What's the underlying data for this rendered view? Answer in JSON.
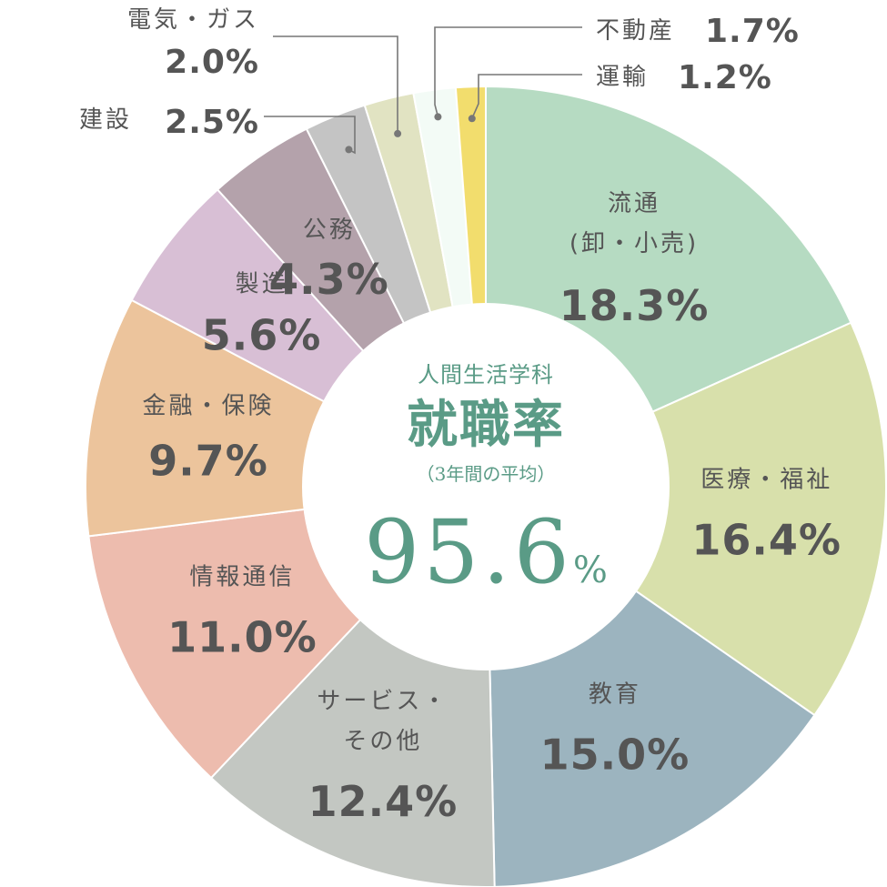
{
  "center": {
    "subtitle": "人間生活学科",
    "title": "就職率",
    "note": "（3年間の平均）",
    "value": "95.6",
    "unit": "%"
  },
  "chart_data": {
    "type": "pie",
    "unit": "%",
    "slices": [
      {
        "label": "流通 (卸・小売)",
        "label_lines": [
          "流通",
          "(卸・小売)"
        ],
        "value": 18.3,
        "value_text": "18.3%",
        "color": "#b6dbc2"
      },
      {
        "label": "医療・福祉",
        "label_lines": [
          "医療・福祉"
        ],
        "value": 16.4,
        "value_text": "16.4%",
        "color": "#d8e0ab"
      },
      {
        "label": "教育",
        "label_lines": [
          "教育"
        ],
        "value": 15.0,
        "value_text": "15.0%",
        "color": "#9cb4bf"
      },
      {
        "label": "サービス・その他",
        "label_lines": [
          "サービス・",
          "その他"
        ],
        "value": 12.4,
        "value_text": "12.4%",
        "color": "#c3c7c2"
      },
      {
        "label": "情報通信",
        "label_lines": [
          "情報通信"
        ],
        "value": 11.0,
        "value_text": "11.0%",
        "color": "#edbcae"
      },
      {
        "label": "金融・保険",
        "label_lines": [
          "金融・保険"
        ],
        "value": 9.7,
        "value_text": "9.7%",
        "color": "#ecc49c"
      },
      {
        "label": "製造",
        "label_lines": [
          "製造"
        ],
        "value": 5.6,
        "value_text": "5.6%",
        "color": "#d8bfd5"
      },
      {
        "label": "公務",
        "label_lines": [
          "公務"
        ],
        "value": 4.3,
        "value_text": "4.3%",
        "color": "#b4a2ab"
      },
      {
        "label": "建設",
        "label_lines": [
          "建設"
        ],
        "value": 2.5,
        "value_text": "2.5%",
        "color": "#c4c4c4"
      },
      {
        "label": "電気・ガス",
        "label_lines": [
          "電気・ガス"
        ],
        "value": 2.0,
        "value_text": "2.0%",
        "color": "#e1e3c2"
      },
      {
        "label": "不動産",
        "label_lines": [
          "不動産"
        ],
        "value": 1.7,
        "value_text": "1.7%",
        "color": "#f3fbf6"
      },
      {
        "label": "運輸",
        "label_lines": [
          "運輸"
        ],
        "value": 1.2,
        "value_text": "1.2%",
        "color": "#f2dd6d"
      }
    ]
  }
}
